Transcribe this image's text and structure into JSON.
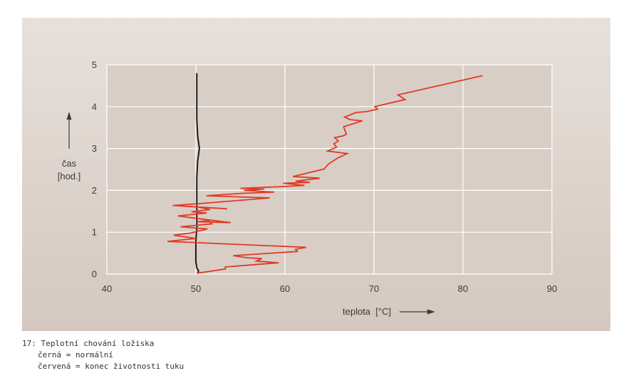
{
  "caption": {
    "line1": "17: Teplotní chování ložiska",
    "line2": "černá = normální",
    "line3": "červená = konec životnosti tuku"
  },
  "colors": {
    "panel_top": "#e7e0db",
    "panel_bottom": "#d4c8bf",
    "plot_bg": "#d9cec6",
    "grid": "#ffffff",
    "normal": "#1a1a1a",
    "end_of_life": "#e03a26",
    "text": "#3a3a3a"
  },
  "chart_data": {
    "type": "line",
    "xlabel": "teplota  [°C]",
    "ylabel_lines": [
      "čas",
      "[hod.]"
    ],
    "xlim": [
      40,
      90
    ],
    "ylim": [
      0,
      5
    ],
    "xticks": [
      40,
      50,
      60,
      70,
      80,
      90
    ],
    "yticks": [
      0,
      1,
      2,
      3,
      4,
      5
    ],
    "grid": true,
    "series": [
      {
        "key": "normal",
        "color": "#1a1a1a",
        "points": [
          [
            50.2,
            0.02
          ],
          [
            50.3,
            0.08
          ],
          [
            50.1,
            0.15
          ],
          [
            50.0,
            0.3
          ],
          [
            50.0,
            0.55
          ],
          [
            50.0,
            0.8
          ],
          [
            50.1,
            1.1
          ],
          [
            50.1,
            1.5
          ],
          [
            50.1,
            1.9
          ],
          [
            50.1,
            2.3
          ],
          [
            50.2,
            2.7
          ],
          [
            50.4,
            3.0
          ],
          [
            50.2,
            3.3
          ],
          [
            50.1,
            3.7
          ],
          [
            50.1,
            4.1
          ],
          [
            50.1,
            4.5
          ],
          [
            50.1,
            4.8
          ]
        ]
      },
      {
        "key": "end_of_life",
        "color": "#e03a26",
        "points": [
          [
            50.1,
            0.02
          ],
          [
            53.3,
            0.12
          ],
          [
            53.3,
            0.17
          ],
          [
            59.3,
            0.27
          ],
          [
            56.8,
            0.31
          ],
          [
            57.4,
            0.37
          ],
          [
            55.8,
            0.39
          ],
          [
            54.2,
            0.44
          ],
          [
            61.4,
            0.54
          ],
          [
            61.2,
            0.59
          ],
          [
            62.4,
            0.64
          ],
          [
            46.8,
            0.78
          ],
          [
            50.0,
            0.85
          ],
          [
            47.5,
            0.93
          ],
          [
            49.4,
            0.98
          ],
          [
            51.3,
            1.08
          ],
          [
            48.3,
            1.13
          ],
          [
            51.8,
            1.2
          ],
          [
            51.4,
            1.28
          ],
          [
            50.2,
            1.25
          ],
          [
            53.9,
            1.23
          ],
          [
            50.1,
            1.33
          ],
          [
            48.0,
            1.39
          ],
          [
            51.2,
            1.46
          ],
          [
            49.5,
            1.49
          ],
          [
            51.6,
            1.54
          ],
          [
            50.3,
            1.6
          ],
          [
            53.5,
            1.56
          ],
          [
            47.4,
            1.64
          ],
          [
            50.8,
            1.69
          ],
          [
            58.3,
            1.82
          ],
          [
            51.2,
            1.87
          ],
          [
            55.3,
            1.93
          ],
          [
            58.8,
            1.96
          ],
          [
            55.4,
            2.0
          ],
          [
            57.7,
            2.03
          ],
          [
            55.0,
            2.05
          ],
          [
            59.7,
            2.09
          ],
          [
            62.2,
            2.12
          ],
          [
            59.8,
            2.17
          ],
          [
            62.8,
            2.19
          ],
          [
            61.2,
            2.22
          ],
          [
            63.9,
            2.29
          ],
          [
            60.9,
            2.33
          ],
          [
            64.4,
            2.51
          ],
          [
            64.9,
            2.63
          ],
          [
            65.9,
            2.77
          ],
          [
            67.0,
            2.88
          ],
          [
            64.8,
            2.94
          ],
          [
            65.8,
            3.03
          ],
          [
            65.5,
            3.11
          ],
          [
            66.0,
            3.18
          ],
          [
            65.6,
            3.26
          ],
          [
            66.5,
            3.3
          ],
          [
            66.9,
            3.34
          ],
          [
            66.6,
            3.52
          ],
          [
            68.7,
            3.66
          ],
          [
            67.3,
            3.69
          ],
          [
            66.7,
            3.75
          ],
          [
            68.0,
            3.86
          ],
          [
            69.1,
            3.88
          ],
          [
            70.4,
            3.94
          ],
          [
            70.1,
            4.0
          ],
          [
            73.5,
            4.17
          ],
          [
            72.7,
            4.28
          ],
          [
            75.8,
            4.43
          ],
          [
            82.2,
            4.74
          ]
        ]
      }
    ]
  }
}
